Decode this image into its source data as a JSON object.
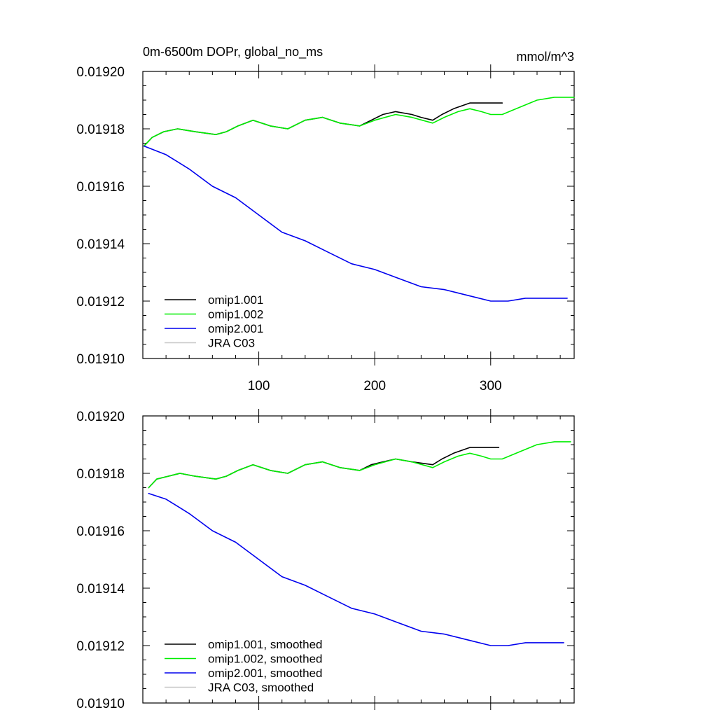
{
  "chart_data": [
    {
      "type": "line",
      "title": "0m-6500m DOPr, global_no_ms",
      "units": "mmol/m^3",
      "xlim": [
        0,
        372
      ],
      "ylim": [
        0.0191,
        0.0192
      ],
      "yticks": [
        "0.01910",
        "0.01912",
        "0.01914",
        "0.01916",
        "0.01918",
        "0.01920"
      ],
      "xticks": [
        "100",
        "200",
        "300"
      ],
      "legend_position": "bottom-left",
      "series": [
        {
          "name": "omip1.001",
          "color": "#000000",
          "points": [
            [
              1,
              0.019174
            ],
            [
              8,
              0.019177
            ],
            [
              18,
              0.019179
            ],
            [
              30,
              0.01918
            ],
            [
              45,
              0.019179
            ],
            [
              63,
              0.019178
            ],
            [
              72,
              0.019179
            ],
            [
              82,
              0.019181
            ],
            [
              95,
              0.019183
            ],
            [
              110,
              0.019181
            ],
            [
              125,
              0.01918
            ],
            [
              140,
              0.019183
            ],
            [
              155,
              0.019184
            ],
            [
              170,
              0.019182
            ],
            [
              187,
              0.019181
            ],
            [
              197,
              0.019183
            ],
            [
              207,
              0.019185
            ],
            [
              218,
              0.019186
            ],
            [
              232,
              0.019185
            ],
            [
              240,
              0.019184
            ],
            [
              250,
              0.019183
            ],
            [
              258,
              0.019185
            ],
            [
              268,
              0.019187
            ],
            [
              282,
              0.019189
            ],
            [
              295,
              0.019189
            ],
            [
              310,
              0.019189
            ]
          ]
        },
        {
          "name": "omip1.002",
          "color": "#00ee00",
          "points": [
            [
              1,
              0.019174
            ],
            [
              8,
              0.019177
            ],
            [
              18,
              0.019179
            ],
            [
              30,
              0.01918
            ],
            [
              45,
              0.019179
            ],
            [
              63,
              0.019178
            ],
            [
              72,
              0.019179
            ],
            [
              82,
              0.019181
            ],
            [
              95,
              0.019183
            ],
            [
              110,
              0.019181
            ],
            [
              125,
              0.01918
            ],
            [
              140,
              0.019183
            ],
            [
              155,
              0.019184
            ],
            [
              170,
              0.019182
            ],
            [
              187,
              0.019181
            ],
            [
              200,
              0.019183
            ],
            [
              218,
              0.019185
            ],
            [
              232,
              0.019184
            ],
            [
              250,
              0.019182
            ],
            [
              260,
              0.019184
            ],
            [
              272,
              0.019186
            ],
            [
              282,
              0.019187
            ],
            [
              292,
              0.019186
            ],
            [
              300,
              0.019185
            ],
            [
              310,
              0.019185
            ],
            [
              322,
              0.019187
            ],
            [
              340,
              0.01919
            ],
            [
              355,
              0.019191
            ],
            [
              372,
              0.019191
            ]
          ]
        },
        {
          "name": "omip2.001",
          "color": "#0000ee",
          "points": [
            [
              1,
              0.019174
            ],
            [
              20,
              0.019171
            ],
            [
              40,
              0.019166
            ],
            [
              60,
              0.01916
            ],
            [
              80,
              0.019156
            ],
            [
              100,
              0.01915
            ],
            [
              120,
              0.019144
            ],
            [
              140,
              0.019141
            ],
            [
              160,
              0.019137
            ],
            [
              180,
              0.019133
            ],
            [
              200,
              0.019131
            ],
            [
              220,
              0.019128
            ],
            [
              240,
              0.019125
            ],
            [
              260,
              0.019124
            ],
            [
              280,
              0.019122
            ],
            [
              300,
              0.01912
            ],
            [
              315,
              0.01912
            ],
            [
              330,
              0.019121
            ],
            [
              350,
              0.019121
            ],
            [
              366,
              0.019121
            ]
          ]
        },
        {
          "name": "JRA C03",
          "color": "#c8c8c8",
          "points": []
        }
      ]
    },
    {
      "type": "line",
      "title": "",
      "units": "",
      "xlim": [
        0,
        372
      ],
      "ylim": [
        0.0191,
        0.0192
      ],
      "yticks": [
        "0.01910",
        "0.01912",
        "0.01914",
        "0.01916",
        "0.01918",
        "0.01920"
      ],
      "xticks": [],
      "legend_position": "bottom-left",
      "series": [
        {
          "name": "omip1.001, smoothed",
          "color": "#000000",
          "points": [
            [
              5,
              0.019175
            ],
            [
              12,
              0.019178
            ],
            [
              22,
              0.019179
            ],
            [
              32,
              0.01918
            ],
            [
              45,
              0.019179
            ],
            [
              63,
              0.019178
            ],
            [
              72,
              0.019179
            ],
            [
              82,
              0.019181
            ],
            [
              95,
              0.019183
            ],
            [
              110,
              0.019181
            ],
            [
              125,
              0.01918
            ],
            [
              140,
              0.019183
            ],
            [
              155,
              0.019184
            ],
            [
              170,
              0.019182
            ],
            [
              187,
              0.019181
            ],
            [
              197,
              0.019183
            ],
            [
              207,
              0.019184
            ],
            [
              218,
              0.019185
            ],
            [
              232,
              0.019184
            ],
            [
              250,
              0.019183
            ],
            [
              258,
              0.019185
            ],
            [
              268,
              0.019187
            ],
            [
              282,
              0.019189
            ],
            [
              295,
              0.019189
            ],
            [
              307,
              0.019189
            ]
          ]
        },
        {
          "name": "omip1.002, smoothed",
          "color": "#00ee00",
          "points": [
            [
              5,
              0.019175
            ],
            [
              12,
              0.019178
            ],
            [
              22,
              0.019179
            ],
            [
              32,
              0.01918
            ],
            [
              45,
              0.019179
            ],
            [
              63,
              0.019178
            ],
            [
              72,
              0.019179
            ],
            [
              82,
              0.019181
            ],
            [
              95,
              0.019183
            ],
            [
              110,
              0.019181
            ],
            [
              125,
              0.01918
            ],
            [
              140,
              0.019183
            ],
            [
              155,
              0.019184
            ],
            [
              170,
              0.019182
            ],
            [
              187,
              0.019181
            ],
            [
              200,
              0.019183
            ],
            [
              218,
              0.019185
            ],
            [
              232,
              0.019184
            ],
            [
              250,
              0.019182
            ],
            [
              260,
              0.019184
            ],
            [
              272,
              0.019186
            ],
            [
              282,
              0.019187
            ],
            [
              292,
              0.019186
            ],
            [
              300,
              0.019185
            ],
            [
              310,
              0.019185
            ],
            [
              322,
              0.019187
            ],
            [
              340,
              0.01919
            ],
            [
              355,
              0.019191
            ],
            [
              369,
              0.019191
            ]
          ]
        },
        {
          "name": "omip2.001, smoothed",
          "color": "#0000ee",
          "points": [
            [
              5,
              0.019173
            ],
            [
              20,
              0.019171
            ],
            [
              40,
              0.019166
            ],
            [
              60,
              0.01916
            ],
            [
              80,
              0.019156
            ],
            [
              100,
              0.01915
            ],
            [
              120,
              0.019144
            ],
            [
              140,
              0.019141
            ],
            [
              160,
              0.019137
            ],
            [
              180,
              0.019133
            ],
            [
              200,
              0.019131
            ],
            [
              220,
              0.019128
            ],
            [
              240,
              0.019125
            ],
            [
              260,
              0.019124
            ],
            [
              280,
              0.019122
            ],
            [
              300,
              0.01912
            ],
            [
              315,
              0.01912
            ],
            [
              330,
              0.019121
            ],
            [
              350,
              0.019121
            ],
            [
              363,
              0.019121
            ]
          ]
        },
        {
          "name": "JRA C03, smoothed",
          "color": "#c8c8c8",
          "points": []
        }
      ]
    }
  ]
}
